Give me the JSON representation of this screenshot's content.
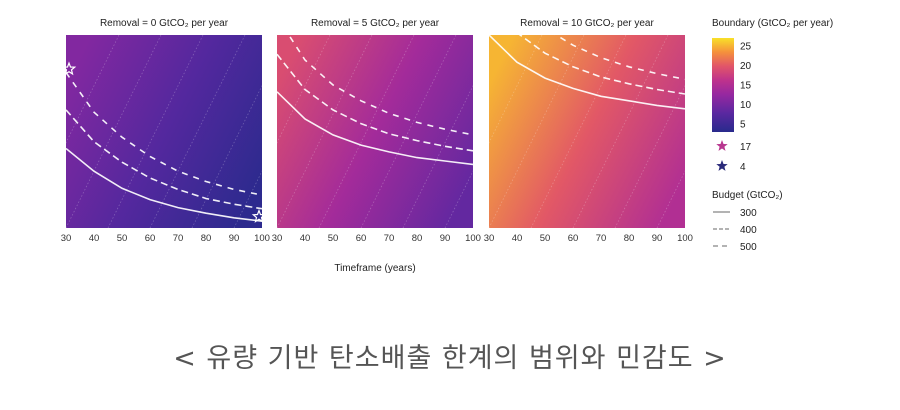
{
  "caption": "< 유량 기반 탄소배출 한계의 범위와 민감도 >",
  "chart_data": {
    "type": "heatmap",
    "xlabel": "Timeframe (years)",
    "x_ticks": [
      30,
      40,
      50,
      60,
      70,
      80,
      90,
      100
    ],
    "xlim": [
      30,
      100
    ],
    "colorbar": {
      "title": "Boundary (GtCO₂ per year)",
      "ticks": [
        25,
        20,
        15,
        10,
        5
      ],
      "range": [
        3,
        27
      ]
    },
    "markers_legend": [
      {
        "label": "17",
        "color": "#b8378f"
      },
      {
        "label": "4",
        "color": "#2a2a7a"
      }
    ],
    "budget_legend": {
      "title": "Budget (GtCO₂)",
      "items": [
        {
          "label": "300",
          "dash": "solid"
        },
        {
          "label": "400",
          "dash": "dashed"
        },
        {
          "label": "500",
          "dash": "loose-dashed"
        }
      ]
    },
    "panels": [
      {
        "title": "Removal = 0 GtCO₂ per year",
        "removal": 0,
        "corner_values": {
          "top_left": 12,
          "top_right": 3.5,
          "bottom_left": 10,
          "bottom_right": 3.5
        },
        "series": [
          {
            "name": "300",
            "points": [
              [
                30,
                10.0
              ],
              [
                40,
                8.0
              ],
              [
                50,
                6.5
              ],
              [
                60,
                5.5
              ],
              [
                70,
                4.8
              ],
              [
                80,
                4.3
              ],
              [
                90,
                3.9
              ],
              [
                100,
                3.6
              ]
            ]
          },
          {
            "name": "400",
            "points": [
              [
                30,
                13.4
              ],
              [
                40,
                10.6
              ],
              [
                50,
                8.8
              ],
              [
                60,
                7.4
              ],
              [
                70,
                6.4
              ],
              [
                80,
                5.6
              ],
              [
                90,
                5.1
              ],
              [
                100,
                4.7
              ]
            ]
          },
          {
            "name": "500",
            "points": [
              [
                30,
                16.7
              ],
              [
                40,
                13.2
              ],
              [
                50,
                11.0
              ],
              [
                60,
                9.3
              ],
              [
                70,
                8.0
              ],
              [
                80,
                7.1
              ],
              [
                90,
                6.4
              ],
              [
                100,
                5.9
              ]
            ]
          }
        ],
        "stars": [
          {
            "x": 30,
            "y": 17,
            "label": "17"
          },
          {
            "x": 100,
            "y": 4,
            "label": "4"
          }
        ]
      },
      {
        "title": "Removal = 5 GtCO₂ per year",
        "removal": 5,
        "corner_values": {
          "top_left": 20,
          "top_right": 11,
          "bottom_left": 18,
          "bottom_right": 6
        },
        "series": [
          {
            "name": "300",
            "points": [
              [
                30,
                15.0
              ],
              [
                40,
                12.6
              ],
              [
                50,
                11.2
              ],
              [
                60,
                10.3
              ],
              [
                70,
                9.7
              ],
              [
                80,
                9.2
              ],
              [
                90,
                8.9
              ],
              [
                100,
                8.6
              ]
            ]
          },
          {
            "name": "400",
            "points": [
              [
                30,
                18.3
              ],
              [
                40,
                15.2
              ],
              [
                50,
                13.4
              ],
              [
                60,
                12.2
              ],
              [
                70,
                11.3
              ],
              [
                80,
                10.7
              ],
              [
                90,
                10.2
              ],
              [
                100,
                9.8
              ]
            ]
          },
          {
            "name": "500",
            "points": [
              [
                30,
                21.6
              ],
              [
                40,
                17.8
              ],
              [
                50,
                15.6
              ],
              [
                60,
                14.2
              ],
              [
                70,
                13.1
              ],
              [
                80,
                12.3
              ],
              [
                90,
                11.7
              ],
              [
                100,
                11.2
              ]
            ]
          }
        ]
      },
      {
        "title": "Removal = 10 GtCO₂ per year",
        "removal": 10,
        "corner_values": {
          "top_left": 26,
          "top_right": 17,
          "bottom_left": 24,
          "bottom_right": 13
        },
        "series": [
          {
            "name": "300",
            "points": [
              [
                30,
                20.0
              ],
              [
                40,
                17.6
              ],
              [
                50,
                16.2
              ],
              [
                60,
                15.3
              ],
              [
                70,
                14.6
              ],
              [
                80,
                14.2
              ],
              [
                90,
                13.8
              ],
              [
                100,
                13.5
              ]
            ]
          },
          {
            "name": "400",
            "points": [
              [
                30,
                23.3
              ],
              [
                40,
                20.2
              ],
              [
                50,
                18.4
              ],
              [
                60,
                17.2
              ],
              [
                70,
                16.3
              ],
              [
                80,
                15.7
              ],
              [
                90,
                15.2
              ],
              [
                100,
                14.8
              ]
            ]
          },
          {
            "name": "500",
            "points": [
              [
                30,
                26.7
              ],
              [
                40,
                22.8
              ],
              [
                50,
                20.6
              ],
              [
                60,
                19.1
              ],
              [
                70,
                18.0
              ],
              [
                80,
                17.2
              ],
              [
                90,
                16.6
              ],
              [
                100,
                16.1
              ]
            ]
          }
        ]
      }
    ]
  }
}
